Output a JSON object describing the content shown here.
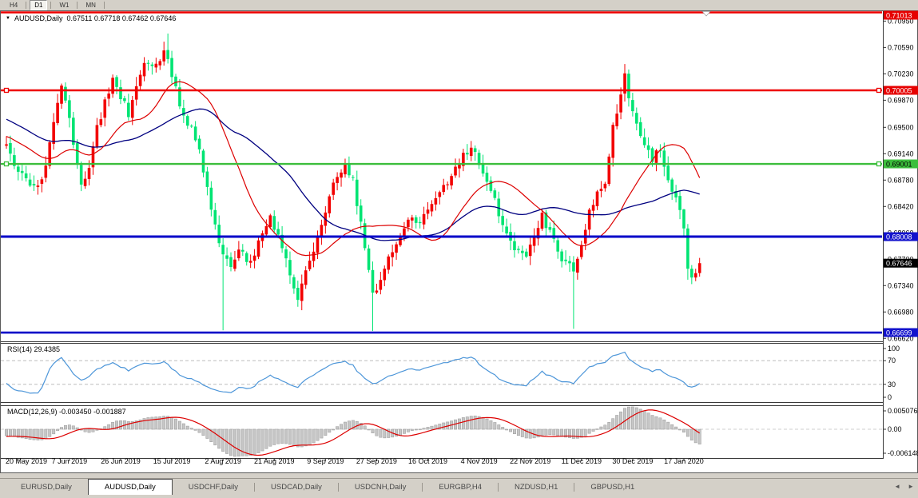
{
  "toolbar": {
    "timeframes": [
      {
        "label": "H4",
        "active": false
      },
      {
        "label": "D1",
        "active": true
      },
      {
        "label": "W1",
        "active": false
      },
      {
        "label": "MN",
        "active": false
      }
    ]
  },
  "chart": {
    "symbol_header": {
      "dropdown_icon": "▼",
      "title": "AUDUSD,Daily",
      "ohlc": "0.67511 0.67718 0.67462 0.67646"
    },
    "price_axis": {
      "ticks": [
        {
          "label": "0.70950",
          "value": 0.7095
        },
        {
          "label": "0.70590",
          "value": 0.7059
        },
        {
          "label": "0.70230",
          "value": 0.7023
        },
        {
          "label": "0.69870",
          "value": 0.6987
        },
        {
          "label": "0.69500",
          "value": 0.695
        },
        {
          "label": "0.69140",
          "value": 0.6914
        },
        {
          "label": "0.68780",
          "value": 0.6878
        },
        {
          "label": "0.68420",
          "value": 0.6842
        },
        {
          "label": "0.68060",
          "value": 0.6806
        },
        {
          "label": "0.67700",
          "value": 0.677
        },
        {
          "label": "0.67340",
          "value": 0.6734
        },
        {
          "label": "0.66980",
          "value": 0.6698
        },
        {
          "label": "0.66620",
          "value": 0.6662
        }
      ],
      "badges": [
        {
          "label": "0.71013",
          "value": 0.71013,
          "bg": "#E60000",
          "fg": "#FFFFFF",
          "clamp_top": true
        },
        {
          "label": "0.70005",
          "value": 0.70005,
          "bg": "#E60000",
          "fg": "#FFFFFF"
        },
        {
          "label": "0.69001",
          "value": 0.69001,
          "bg": "#3CBE3C",
          "fg": "#000000"
        },
        {
          "label": "0.68008",
          "value": 0.68008,
          "bg": "#1212CC",
          "fg": "#FFFFFF"
        },
        {
          "label": "0.67646",
          "value": 0.67646,
          "bg": "#000000",
          "fg": "#FFFFFF"
        },
        {
          "label": "0.66699",
          "value": 0.66699,
          "bg": "#1212CC",
          "fg": "#FFFFFF"
        }
      ]
    },
    "hlines": [
      {
        "value": 0.71013,
        "color": "#EE0000",
        "width": 2.6,
        "clamp_top": true,
        "marker": true,
        "anchors": false
      },
      {
        "value": 0.70005,
        "color": "#EE0000",
        "width": 2.6,
        "anchors": true
      },
      {
        "value": 0.69001,
        "color": "#3CBE3C",
        "width": 2.4,
        "anchors": true
      },
      {
        "value": 0.68008,
        "color": "#0000C8",
        "width": 3,
        "anchors": false
      },
      {
        "value": 0.66699,
        "color": "#0000C8",
        "width": 2.6,
        "anchors": false
      }
    ],
    "rsi": {
      "label": "RSI(14) 29.4385",
      "period": 14,
      "current_value": 29.4385,
      "dashed_levels": [
        70,
        30
      ],
      "axis_labels": [
        {
          "label": "100",
          "value": 100
        },
        {
          "label": "70",
          "value": 70
        },
        {
          "label": "30",
          "value": 30
        },
        {
          "label": "0",
          "value": 0
        }
      ],
      "line_color": "#4D96D9"
    },
    "macd": {
      "label": "MACD(12,26,9) -0.003450 -0.001887",
      "fast": 12,
      "slow": 26,
      "signal": 9,
      "macd_value": -0.00345,
      "signal_value": -0.001887,
      "axis_labels": [
        {
          "label": "0.005076",
          "value": 0.005076
        },
        {
          "label": "0.00",
          "value": 0
        },
        {
          "label": "-0.006148",
          "value": -0.006148
        }
      ],
      "histogram_color": "#C6C6C6",
      "histogram_edge": "#9A9A9A",
      "signal_color": "#DD0000"
    },
    "date_axis": {
      "labels": [
        "20 May 2019",
        "7 Jun 2019",
        "26 Jun 2019",
        "15 Jul 2019",
        "2 Aug 2019",
        "21 Aug 2019",
        "9 Sep 2019",
        "27 Sep 2019",
        "16 Oct 2019",
        "4 Nov 2019",
        "22 Nov 2019",
        "11 Dec 2019",
        "30 Dec 2019",
        "17 Jan 2020"
      ],
      "bar_indices": [
        3,
        16,
        29,
        42,
        55,
        68,
        81,
        94,
        107,
        120,
        133,
        146,
        159,
        172
      ]
    }
  },
  "chart_data": {
    "type": "candlestick",
    "symbol": "AUDUSD",
    "timeframe": "Daily",
    "current_bar": {
      "open": 0.67511,
      "high": 0.67718,
      "low": 0.67462,
      "close": 0.67646
    },
    "visible_bars": 177,
    "price_range_visible": [
      0.66605,
      0.7106
    ],
    "moving_averages": [
      {
        "period": 20,
        "color": "#DD0000"
      },
      {
        "period": 40,
        "color": "#000080"
      }
    ],
    "bull_color": "#F20000",
    "bear_color": "#00E473",
    "close_waypoints": [
      [
        -45,
        0.704
      ],
      [
        -38,
        0.701
      ],
      [
        -30,
        0.6985
      ],
      [
        -22,
        0.6963
      ],
      [
        -15,
        0.6945
      ],
      [
        -8,
        0.6933
      ],
      [
        -1,
        0.6925
      ],
      [
        0,
        0.6923
      ],
      [
        2,
        0.6902
      ],
      [
        5,
        0.6878
      ],
      [
        8,
        0.6866
      ],
      [
        10,
        0.6898
      ],
      [
        12,
        0.6962
      ],
      [
        14,
        0.7003
      ],
      [
        15,
        0.6988
      ],
      [
        17,
        0.6928
      ],
      [
        19,
        0.6873
      ],
      [
        21,
        0.6898
      ],
      [
        23,
        0.6948
      ],
      [
        25,
        0.6983
      ],
      [
        27,
        0.7012
      ],
      [
        29,
        0.6993
      ],
      [
        31,
        0.6968
      ],
      [
        33,
        0.7003
      ],
      [
        35,
        0.7033
      ],
      [
        38,
        0.7038
      ],
      [
        40,
        0.705
      ],
      [
        41,
        0.7045
      ],
      [
        42,
        0.7018
      ],
      [
        44,
        0.6983
      ],
      [
        46,
        0.6958
      ],
      [
        48,
        0.6938
      ],
      [
        50,
        0.6893
      ],
      [
        52,
        0.6838
      ],
      [
        54,
        0.6793
      ],
      [
        55,
        0.6775
      ],
      [
        57,
        0.6763
      ],
      [
        59,
        0.6783
      ],
      [
        61,
        0.6768
      ],
      [
        63,
        0.6778
      ],
      [
        65,
        0.6803
      ],
      [
        67,
        0.6833
      ],
      [
        69,
        0.6798
      ],
      [
        71,
        0.6768
      ],
      [
        73,
        0.6733
      ],
      [
        74,
        0.672
      ],
      [
        76,
        0.6753
      ],
      [
        78,
        0.6783
      ],
      [
        80,
        0.6818
      ],
      [
        82,
        0.6858
      ],
      [
        84,
        0.6883
      ],
      [
        86,
        0.6903
      ],
      [
        88,
        0.6878
      ],
      [
        90,
        0.6818
      ],
      [
        92,
        0.6758
      ],
      [
        93,
        0.672
      ],
      [
        95,
        0.6743
      ],
      [
        97,
        0.6768
      ],
      [
        100,
        0.6803
      ],
      [
        103,
        0.6828
      ],
      [
        105,
        0.6818
      ],
      [
        108,
        0.6843
      ],
      [
        111,
        0.6868
      ],
      [
        114,
        0.6893
      ],
      [
        116,
        0.6913
      ],
      [
        118,
        0.6923
      ],
      [
        120,
        0.6898
      ],
      [
        123,
        0.6863
      ],
      [
        126,
        0.6818
      ],
      [
        129,
        0.6783
      ],
      [
        132,
        0.6773
      ],
      [
        134,
        0.6803
      ],
      [
        136,
        0.6828
      ],
      [
        138,
        0.6808
      ],
      [
        140,
        0.6783
      ],
      [
        142,
        0.6763
      ],
      [
        144,
        0.6758
      ],
      [
        146,
        0.6788
      ],
      [
        148,
        0.6833
      ],
      [
        150,
        0.6863
      ],
      [
        152,
        0.6878
      ],
      [
        154,
        0.6948
      ],
      [
        156,
        0.6998
      ],
      [
        157,
        0.702
      ],
      [
        158,
        0.6993
      ],
      [
        160,
        0.6958
      ],
      [
        162,
        0.6928
      ],
      [
        164,
        0.6908
      ],
      [
        166,
        0.6918
      ],
      [
        168,
        0.6878
      ],
      [
        170,
        0.6853
      ],
      [
        171,
        0.6833
      ],
      [
        172,
        0.6812
      ],
      [
        173,
        0.6757
      ],
      [
        174,
        0.6745
      ],
      [
        175,
        0.6751
      ],
      [
        176,
        0.67646
      ]
    ],
    "overrides": {
      "41": {
        "h": 0.7078
      },
      "55": {
        "l": 0.6673
      },
      "93": {
        "l": 0.6672
      },
      "144": {
        "l": 0.6675
      },
      "172": {
        "o": 0.6838,
        "c": 0.6812
      },
      "173": {
        "o": 0.6812,
        "c": 0.6757,
        "h": 0.6818,
        "l": 0.6742
      },
      "174": {
        "o": 0.6757,
        "c": 0.6745,
        "h": 0.6762,
        "l": 0.6736
      },
      "175": {
        "o": 0.6745,
        "c": 0.6751,
        "h": 0.6757,
        "l": 0.674
      },
      "176": {
        "o": 0.67511,
        "h": 0.67718,
        "l": 0.67462,
        "c": 0.67646
      }
    }
  },
  "tabs": {
    "items": [
      {
        "label": "EURUSD,Daily",
        "active": false
      },
      {
        "label": "AUDUSD,Daily",
        "active": true
      },
      {
        "label": "USDCHF,Daily",
        "active": false
      },
      {
        "label": "USDCAD,Daily",
        "active": false
      },
      {
        "label": "USDCNH,Daily",
        "active": false
      },
      {
        "label": "EURGBP,H4",
        "active": false
      },
      {
        "label": "NZDUSD,H1",
        "active": false
      },
      {
        "label": "GBPUSD,H1",
        "active": false
      }
    ],
    "scroll_left_icon": "◄",
    "scroll_right_icon": "►"
  }
}
